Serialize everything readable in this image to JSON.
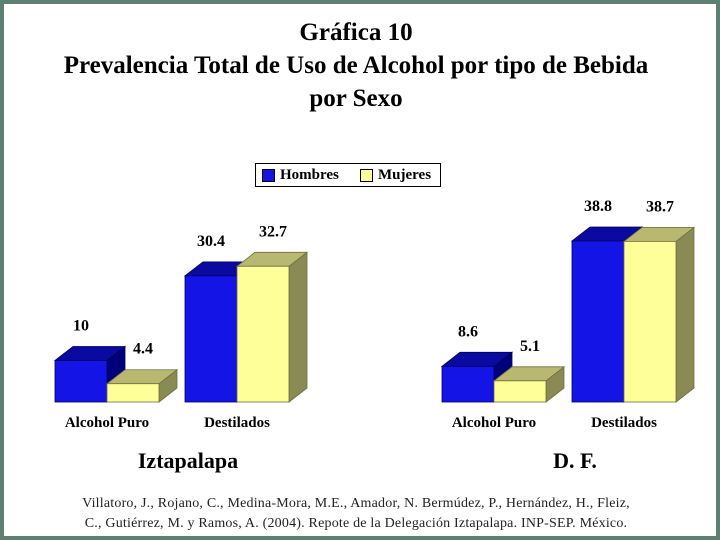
{
  "title_lines": [
    "Gráfica 10",
    "Prevalencia Total de Uso de Alcohol por tipo de Bebida",
    "por Sexo"
  ],
  "legend": [
    {
      "label": "Hombres",
      "color": "#1414e6"
    },
    {
      "label": "Mujeres",
      "color": "#ffff99"
    }
  ],
  "chart_data": [
    {
      "type": "bar",
      "group_label": "Iztapalapa",
      "categories": [
        "Alcohol Puro",
        "Destilados"
      ],
      "series": [
        {
          "name": "Hombres",
          "values": [
            10,
            30.4
          ],
          "labels": [
            "10",
            "30.4"
          ]
        },
        {
          "name": "Mujeres",
          "values": [
            4.4,
            32.7
          ],
          "labels": [
            "4.4",
            "32.7"
          ]
        }
      ]
    },
    {
      "type": "bar",
      "group_label": "D. F.",
      "categories": [
        "Alcohol Puro",
        "Destilados"
      ],
      "series": [
        {
          "name": "Hombres",
          "values": [
            8.6,
            38.8
          ],
          "labels": [
            "8.6",
            "38.8"
          ]
        },
        {
          "name": "Mujeres",
          "values": [
            5.1,
            38.7
          ],
          "labels": [
            "5.1",
            "38.7"
          ]
        }
      ]
    }
  ],
  "citation_lines": [
    "Villatoro, J., Rojano, C., Medina-Mora, M.E., Amador, N. Bermúdez, P., Hernández, H., Fleiz,",
    "C., Gutiérrez, M. y Ramos, A. (2004). Repote de la Delegación Iztapalapa. INP-SEP. México."
  ]
}
